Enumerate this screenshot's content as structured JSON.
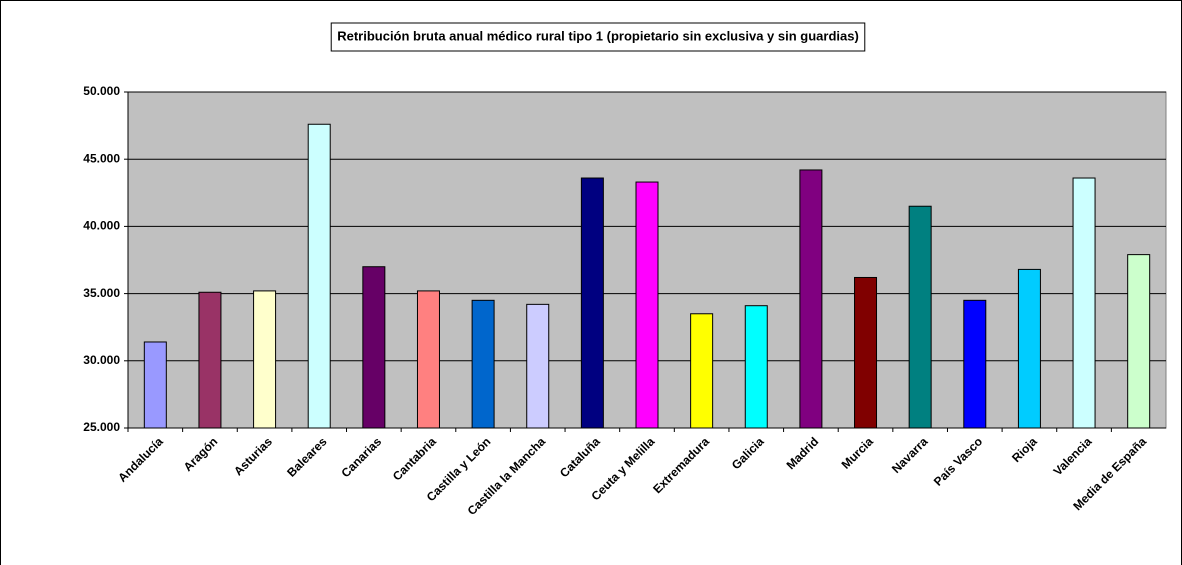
{
  "chart_data": {
    "type": "bar",
    "title": "Retribución bruta anual  médico rural  tipo 1 (propietario sin exclusiva y sin guardias)",
    "categories": [
      "Andalucía",
      "Aragón",
      "Asturias",
      "Baleares",
      "Canarias",
      "Cantabria",
      "Castilla y León",
      "Castilla la Mancha",
      "Cataluña",
      "Ceuta y Melilla",
      "Extremadura",
      "Galicia",
      "Madrid",
      "Murcia",
      "Navarra",
      "País Vasco",
      "Rioja",
      "Valencia",
      "Media de España"
    ],
    "values": [
      31400,
      35100,
      35200,
      47600,
      37000,
      35200,
      34500,
      34200,
      43600,
      43300,
      33500,
      34100,
      44200,
      36200,
      41500,
      34500,
      36800,
      43600,
      37900
    ],
    "colors": [
      "#9999ff",
      "#993366",
      "#ffffcc",
      "#ccffff",
      "#660066",
      "#ff8080",
      "#0066cc",
      "#ccccff",
      "#000080",
      "#ff00ff",
      "#ffff00",
      "#00ffff",
      "#800080",
      "#800000",
      "#008080",
      "#0000ff",
      "#00ccff",
      "#ccffff",
      "#ccffcc"
    ],
    "ylim": [
      25000,
      50000
    ],
    "yticks": [
      {
        "value": 25000,
        "label": "25.000"
      },
      {
        "value": 30000,
        "label": "30.000"
      },
      {
        "value": 35000,
        "label": "35.000"
      },
      {
        "value": 40000,
        "label": "40.000"
      },
      {
        "value": 45000,
        "label": "45.000"
      },
      {
        "value": 50000,
        "label": "50.000"
      }
    ],
    "grid": true
  }
}
